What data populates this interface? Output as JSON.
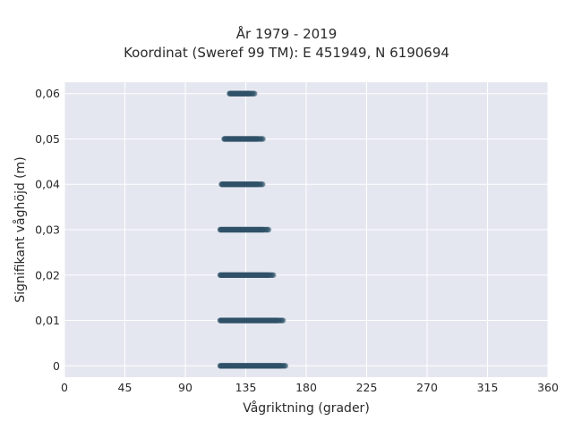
{
  "chart_data": {
    "type": "scatter",
    "title": "År 1979 - 2019",
    "subtitle": "Koordinat (Sweref 99 TM): E 451949, N 6190694",
    "xlabel": "Vågriktning (grader)",
    "ylabel": "Signifikant våghöjd (m)",
    "xlim": [
      0,
      360
    ],
    "ylim": [
      -0.0025,
      0.0625
    ],
    "x_ticks": [
      0,
      45,
      90,
      135,
      180,
      225,
      270,
      315,
      360
    ],
    "x_tick_labels": [
      "0",
      "45",
      "90",
      "135",
      "180",
      "225",
      "270",
      "315",
      "360"
    ],
    "y_ticks": [
      0,
      0.01,
      0.02,
      0.03,
      0.04,
      0.05,
      0.06
    ],
    "y_tick_labels": [
      "0",
      "0,01",
      "0,02",
      "0,03",
      "0,04",
      "0,05",
      "0,06"
    ],
    "grid": true,
    "point_color": "#2f5168",
    "background_color": "#e5e7f0",
    "series": [
      {
        "bands": [
          {
            "y": 0,
            "x_min": 116,
            "x_max": 165
          },
          {
            "y": 0.01,
            "x_min": 116,
            "x_max": 163
          },
          {
            "y": 0.02,
            "x_min": 116,
            "x_max": 156
          },
          {
            "y": 0.03,
            "x_min": 116,
            "x_max": 152
          },
          {
            "y": 0.04,
            "x_min": 117,
            "x_max": 148
          },
          {
            "y": 0.05,
            "x_min": 119,
            "x_max": 148
          },
          {
            "y": 0.06,
            "x_min": 123,
            "x_max": 142
          }
        ]
      }
    ]
  }
}
